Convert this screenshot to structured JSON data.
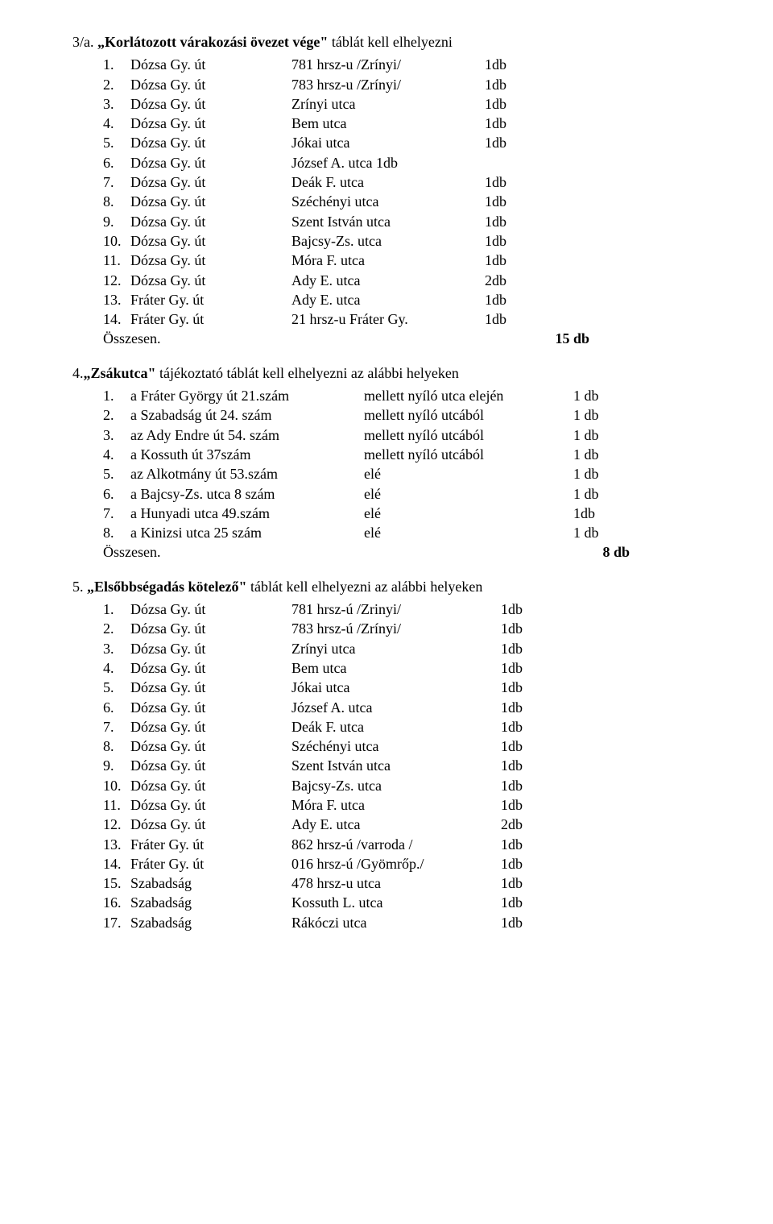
{
  "sections": [
    {
      "heading_prefix": "3/a. ",
      "heading_bold": "„Korlátozott várakozási övezet vége\"",
      "heading_suffix": " táblát kell elhelyezni",
      "items": [
        {
          "num": "1.",
          "name": "Dózsa Gy. út",
          "mid": "781 hrsz-u /Zrínyi/",
          "qty": "1db"
        },
        {
          "num": "2.",
          "name": "Dózsa Gy. út",
          "mid": "783 hrsz-u /Zrínyi/",
          "qty": "1db"
        },
        {
          "num": "3.",
          "name": "Dózsa Gy. út",
          "mid": "Zrínyi utca",
          "qty": "1db"
        },
        {
          "num": "4.",
          "name": "Dózsa Gy. út",
          "mid": "Bem utca",
          "qty": "1db"
        },
        {
          "num": "5.",
          "name": "Dózsa Gy. út",
          "mid": "Jókai utca",
          "qty": "1db"
        },
        {
          "num": "6.",
          "name": "Dózsa Gy. út",
          "mid": "József A. utca   1db",
          "qty": ""
        },
        {
          "num": "7.",
          "name": "Dózsa Gy. út",
          "mid": "Deák F. utca",
          "qty": "1db"
        },
        {
          "num": "8.",
          "name": "Dózsa Gy. út",
          "mid": "Széchényi utca",
          "qty": "1db"
        },
        {
          "num": "9.",
          "name": "Dózsa Gy. út",
          "mid": "Szent István utca",
          "qty": "1db"
        },
        {
          "num": "10.",
          "name": "Dózsa Gy. út",
          "mid": "Bajcsy-Zs. utca",
          "qty": "1db"
        },
        {
          "num": "11.",
          "name": "Dózsa Gy. út",
          "mid": "Móra F. utca",
          "qty": "1db"
        },
        {
          "num": "12.",
          "name": "Dózsa Gy. út",
          "mid": "Ady E. utca",
          "qty": "2db"
        },
        {
          "num": "13.",
          "name": "Fráter Gy. út",
          "mid": "Ady E. utca",
          "qty": "1db"
        },
        {
          "num": "14.",
          "name": "Fráter Gy. út",
          "mid": "21 hrsz-u Fráter Gy.",
          "qty": "1db"
        }
      ],
      "sum_label": "Összesen.",
      "sum_total": "15 db"
    },
    {
      "heading_prefix": "4.",
      "heading_bold": "„Zsákutca\"",
      "heading_suffix": " tájékoztató táblát kell elhelyezni az alábbi helyeken",
      "items": [
        {
          "num": "1.",
          "desc": "a Fráter György út 21.szám",
          "mid": "mellett nyíló utca elején",
          "qty": "1 db"
        },
        {
          "num": "2.",
          "desc": "a Szabadság út 24. szám",
          "mid": "mellett nyíló utcából",
          "qty": "1 db"
        },
        {
          "num": "3.",
          "desc": "az Ady Endre út 54. szám",
          "mid": "mellett nyíló utcából",
          "qty": "1 db"
        },
        {
          "num": "4.",
          "desc": "a Kossuth út 37szám",
          "mid": "mellett nyíló utcából",
          "qty": "1 db"
        },
        {
          "num": "5.",
          "desc": "az Alkotmány út 53.szám",
          "mid": "elé",
          "qty": "1 db"
        },
        {
          "num": "6.",
          "desc": "a Bajcsy-Zs. utca 8 szám",
          "mid": "elé",
          "qty": "1 db"
        },
        {
          "num": "7.",
          "desc": "a Hunyadi utca 49.szám",
          "mid": "elé",
          "qty": "1db"
        },
        {
          "num": "8.",
          "desc": "a Kinizsi utca 25 szám",
          "mid": "elé",
          "qty": "1 db"
        }
      ],
      "sum_label": "Összesen.",
      "sum_total": "8 db"
    },
    {
      "heading_prefix": "5. ",
      "heading_bold": "„Elsőbbségadás kötelező\"",
      "heading_suffix": " táblát kell elhelyezni az alábbi helyeken",
      "items": [
        {
          "num": "1.",
          "name": "Dózsa Gy. út",
          "mid": "781 hrsz-ú /Zrinyi/",
          "qty": "1db"
        },
        {
          "num": "2.",
          "name": "Dózsa Gy. út",
          "mid": "783 hrsz-ú /Zrínyi/",
          "qty": "1db"
        },
        {
          "num": "3.",
          "name": "Dózsa Gy. út",
          "mid": "Zrínyi utca",
          "qty": "1db"
        },
        {
          "num": "4.",
          "name": "Dózsa Gy. út",
          "mid": "Bem utca",
          "qty": "1db"
        },
        {
          "num": "5.",
          "name": "Dózsa Gy. út",
          "mid": "Jókai utca",
          "qty": "1db"
        },
        {
          "num": "6.",
          "name": "Dózsa Gy. út",
          "mid": "József A. utca",
          "qty": "1db"
        },
        {
          "num": "7.",
          "name": "Dózsa Gy. út",
          "mid": "Deák F. utca",
          "qty": "1db"
        },
        {
          "num": "8.",
          "name": "Dózsa Gy. út",
          "mid": "Széchényi utca",
          "qty": "1db"
        },
        {
          "num": "9.",
          "name": "Dózsa Gy. út",
          "mid": "Szent István utca",
          "qty": "1db"
        },
        {
          "num": "10.",
          "name": "Dózsa Gy. út",
          "mid": "Bajcsy-Zs. utca",
          "qty": "1db"
        },
        {
          "num": "11.",
          "name": "Dózsa Gy. út",
          "mid": "Móra F. utca",
          "qty": "1db"
        },
        {
          "num": "12.",
          "name": "Dózsa Gy. út",
          "mid": "Ady E. utca",
          "qty": "2db"
        },
        {
          "num": "13.",
          "name": "Fráter Gy. út",
          "mid": "862 hrsz-ú /varroda /",
          "qty": "1db"
        },
        {
          "num": "14.",
          "name": "Fráter Gy. út",
          "mid": "016 hrsz-ú /Gyömrőp./",
          "qty": "1db"
        },
        {
          "num": "15.",
          "name": "Szabadság",
          "mid": "478 hrsz-u utca",
          "qty": "1db"
        },
        {
          "num": "16.",
          "name": "Szabadság",
          "mid": "Kossuth L. utca",
          "qty": "1db"
        },
        {
          "num": "17.",
          "name": "Szabadság",
          "mid": "Rákóczi utca",
          "qty": "1db"
        }
      ]
    }
  ]
}
